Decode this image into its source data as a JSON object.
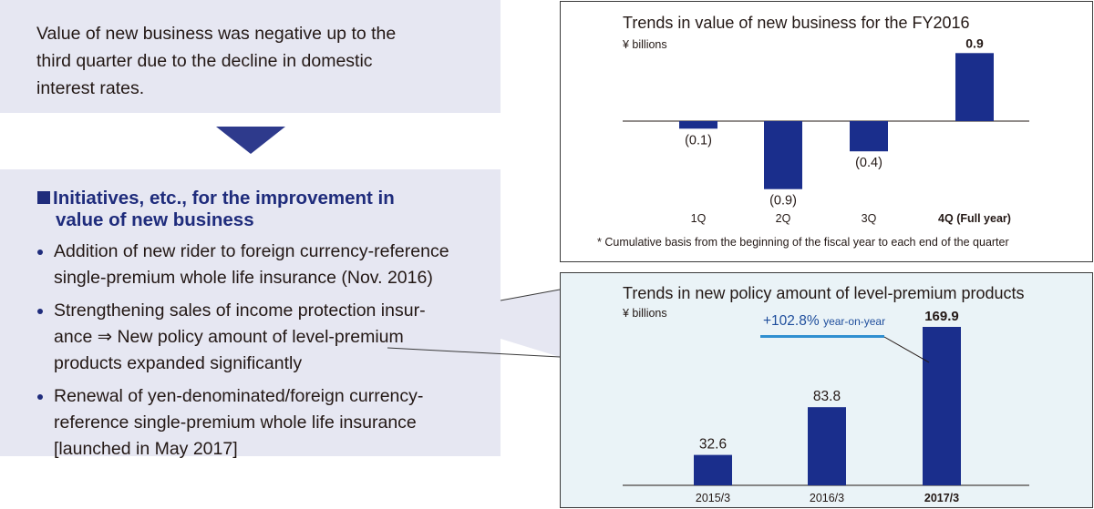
{
  "summary": {
    "lines": [
      "Value of new business was negative up to the",
      "third quarter due to the decline in domestic",
      "interest rates."
    ]
  },
  "initiatives": {
    "title_line1": "Initiatives, etc., for the improvement in",
    "title_line2": "value of new business",
    "items": [
      {
        "lines": [
          "Addition of new rider to foreign currency-reference",
          "single-premium whole life insurance (Nov. 2016)"
        ]
      },
      {
        "lines": [
          "Strengthening sales of income protection insur-",
          "ance ⇒ New policy amount of level-premium",
          "products expanded significantly"
        ]
      },
      {
        "lines": [
          "Renewal of yen-denominated/foreign currency-",
          "reference single-premium whole life insurance",
          "[launched in May 2017]"
        ]
      }
    ]
  },
  "colors": {
    "bar": "#1a2e8c",
    "box_bg": "#e6e7f2",
    "accent_blue": "#2f8fd0",
    "title_blue": "#1f2c7c"
  },
  "chart_data": [
    {
      "type": "bar",
      "title": "Trends in value of new business for the FY2016",
      "ylabel": "¥ billions",
      "categories": [
        "1Q",
        "2Q",
        "3Q",
        "4Q (Full year)"
      ],
      "values": [
        -0.1,
        -0.9,
        -0.4,
        0.9
      ],
      "data_labels": [
        "(0.1)",
        "(0.9)",
        "(0.4)",
        "0.9"
      ],
      "bold_category": "4Q (Full year)",
      "footnote": "*  Cumulative basis from the beginning of the fiscal year to each end of the quarter",
      "grid": false
    },
    {
      "type": "bar",
      "title": "Trends in new policy amount of level-premium products",
      "ylabel": "¥ billions",
      "categories": [
        "2015/3",
        "2016/3",
        "2017/3"
      ],
      "values": [
        32.6,
        83.8,
        169.9
      ],
      "data_labels": [
        "32.6",
        "83.8",
        "169.9"
      ],
      "bold_category": "2017/3",
      "annotation": {
        "pct": "+102.8%",
        "text": "year-on-year"
      },
      "grid": false
    }
  ]
}
